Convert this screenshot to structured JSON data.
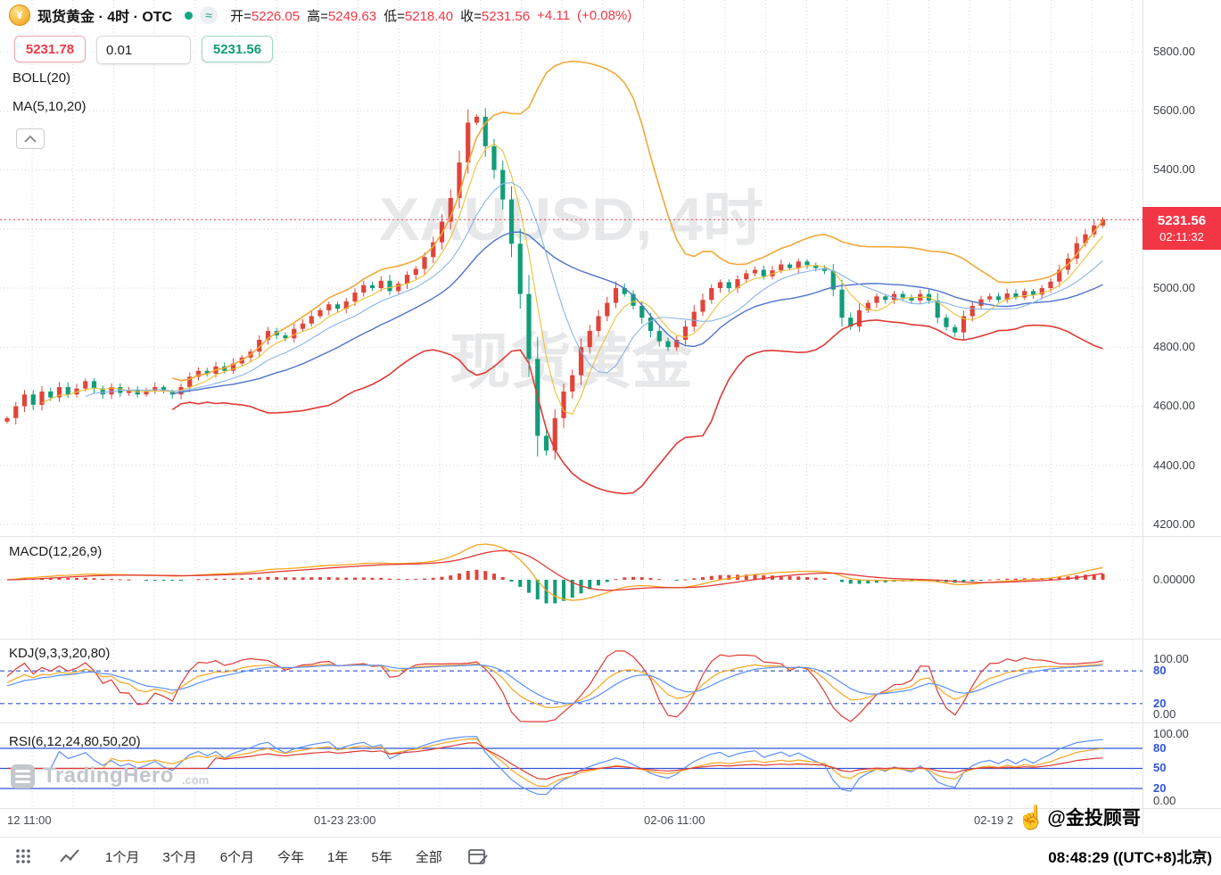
{
  "header": {
    "symbol_title": "现货黄金 · 4时 · OTC",
    "approx": "≈",
    "coin_glyph": "¥",
    "ohlc": [
      {
        "label": "开=",
        "value": "5226.05"
      },
      {
        "label": "高=",
        "value": "5249.63"
      },
      {
        "label": "低=",
        "value": "5218.40"
      },
      {
        "label": "收=",
        "value": "5231.56"
      }
    ],
    "change": "+4.11",
    "change_pct": "(+0.08%)"
  },
  "trade_panel": {
    "sell": "5231.78",
    "qty": "0.01",
    "buy": "5231.56"
  },
  "indicators": {
    "boll_label": "BOLL(20)",
    "ma_label": "MA(5,10,20)",
    "macd_label": "MACD(12,26,9)",
    "kdj_label": "KDJ(9,3,3,20,80)",
    "rsi_label": "RSI(6,12,24,80,50,20)"
  },
  "price_axis": {
    "labels": [
      "5800.00",
      "5600.00",
      "5400.00",
      "5000.00",
      "4800.00",
      "4600.00",
      "4400.00",
      "4200.00"
    ]
  },
  "macd_axis": {
    "zero": "0.00000"
  },
  "kdj_axis": {
    "top": "100.00",
    "eighty": "80",
    "twenty": "20",
    "bottom": "0.00"
  },
  "rsi_axis": {
    "top": "100.00",
    "eighty": "80",
    "fifty": "50",
    "twenty": "20",
    "bottom": "0.00"
  },
  "price_tag": {
    "price": "5231.56",
    "time": "02:11:32"
  },
  "time_axis": {
    "labels": [
      "12 11:00",
      "01-23 23:00",
      "02-06 11:00",
      "02-19 2"
    ]
  },
  "toolbar": {
    "periods": [
      "1个月",
      "3个月",
      "6个月",
      "今年",
      "1年",
      "5年",
      "全部"
    ]
  },
  "footer": {
    "clock": "08:48:29 ((UTC+8)北京)",
    "handle": "@金投顾哥",
    "hand_glyph": "☝"
  },
  "watermarks": {
    "line1": "XAUUSD, 4时",
    "line2": "现货黄金",
    "brand": "TradingHero",
    "brand_suffix": ".com"
  },
  "colors": {
    "up": "#e0443a",
    "down": "#119d79",
    "accent_red": "#f23645",
    "accent_green": "#0f9d74",
    "boll_upper": "#f0a93a",
    "boll_mid": "#4f74c9",
    "boll_lower": "#e03a36",
    "ma5": "#e8c23a",
    "ma10": "#8ab4e8",
    "macd_dif": "#f5a623",
    "macd_dea": "#e03a36",
    "kdj_k": "#f5a623",
    "kdj_d": "#5b8ff9",
    "kdj_j": "#e03a36",
    "rsi6": "#5b8ff9",
    "rsi12": "#f5a623",
    "rsi24": "#e03a36",
    "axis_blue": "#2f54d6",
    "grid": "#d8d8d8",
    "tag": "#f23645"
  },
  "chart_data": {
    "type": "candlestick",
    "title": "现货黄金 XAUUSD 4时 OTC",
    "interval": "4时",
    "y_axis": {
      "min": 4200,
      "max": 5800,
      "step": 200
    },
    "x_labels": [
      "12 11:00",
      "01-23 23:00",
      "02-06 11:00",
      "02-19 2"
    ],
    "current_price": 5231.56,
    "current_bar": {
      "open": 5226.05,
      "high": 5249.63,
      "low": 5218.4,
      "close": 5231.56,
      "change": 4.11,
      "change_pct": 0.08
    },
    "indicator_params": {
      "boll": [
        20,
        2
      ],
      "ma": [
        5,
        10,
        20
      ],
      "macd": [
        12,
        26,
        9
      ],
      "kdj": [
        9,
        3,
        3
      ],
      "rsi": [
        6,
        12,
        24
      ]
    },
    "kdj_levels": [
      80,
      20
    ],
    "rsi_levels": [
      80,
      50,
      20
    ],
    "closes": [
      4560,
      4600,
      4640,
      4605,
      4650,
      4630,
      4665,
      4640,
      4660,
      4685,
      4660,
      4640,
      4665,
      4645,
      4655,
      4640,
      4650,
      4665,
      4650,
      4640,
      4665,
      4700,
      4720,
      4710,
      4735,
      4720,
      4745,
      4765,
      4785,
      4825,
      4855,
      4840,
      4830,
      4862,
      4880,
      4905,
      4925,
      4945,
      4930,
      4955,
      4985,
      5010,
      5000,
      5025,
      4990,
      5015,
      5045,
      5065,
      5105,
      5155,
      5225,
      5305,
      5425,
      5560,
      5580,
      5480,
      5400,
      5300,
      5150,
      4980,
      4760,
      4500,
      4450,
      4560,
      4650,
      4705,
      4800,
      4855,
      4905,
      4950,
      5000,
      4980,
      4940,
      4900,
      4855,
      4820,
      4800,
      4825,
      4870,
      4920,
      4960,
      5000,
      5020,
      5000,
      5030,
      5050,
      5062,
      5040,
      5060,
      5080,
      5068,
      5090,
      5078,
      5068,
      5058,
      4995,
      4900,
      4870,
      4925,
      4950,
      4972,
      4960,
      4980,
      4968,
      4958,
      4980,
      4958,
      4900,
      4868,
      4850,
      4905,
      4940,
      4962,
      4972,
      4960,
      4982,
      4968,
      4990,
      4978,
      5000,
      5022,
      5062,
      5100,
      5152,
      5182,
      5212,
      5232
    ]
  }
}
